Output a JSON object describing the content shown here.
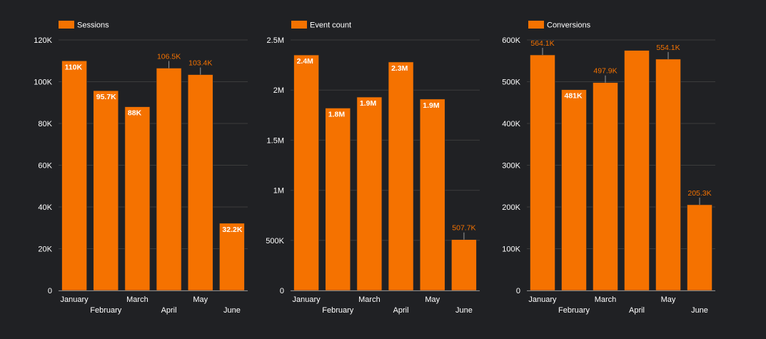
{
  "colors": {
    "background": "#202124",
    "bar": "#f57200",
    "bar_edge": "#2a2a2a",
    "axis_text": "#ffffff",
    "grid": "#3c3c3c",
    "axis_line": "#8a8a8a",
    "inside_label": "#ffffff",
    "outside_label": "#f57200",
    "leader_line": "#9a9a9a"
  },
  "chart_data": [
    {
      "type": "bar",
      "legend": "Sessions",
      "legend_position": "top-left",
      "grid": true,
      "categories": [
        "January",
        "February",
        "March",
        "April",
        "May",
        "June"
      ],
      "values": [
        110000,
        95700,
        88000,
        106500,
        103400,
        32200
      ],
      "data_labels": [
        "110K",
        "95.7K",
        "88K",
        "106.5K",
        "103.4K",
        "32.2K"
      ],
      "label_inside": [
        true,
        true,
        true,
        false,
        false,
        true
      ],
      "ylim": [
        0,
        120000
      ],
      "y_ticks": [
        0,
        20000,
        40000,
        60000,
        80000,
        100000,
        120000
      ],
      "y_tick_labels": [
        "0",
        "20K",
        "40K",
        "60K",
        "80K",
        "100K",
        "120K"
      ]
    },
    {
      "type": "bar",
      "legend": "Event count",
      "legend_position": "top-left",
      "grid": true,
      "categories": [
        "January",
        "February",
        "March",
        "April",
        "May",
        "June"
      ],
      "values": [
        2350000,
        1820000,
        1930000,
        2280000,
        1910000,
        507700
      ],
      "data_labels": [
        "2.4M",
        "1.8M",
        "1.9M",
        "2.3M",
        "1.9M",
        "507.7K"
      ],
      "label_inside": [
        true,
        true,
        true,
        true,
        true,
        false
      ],
      "ylim": [
        0,
        2500000
      ],
      "y_ticks": [
        0,
        500000,
        1000000,
        1500000,
        2000000,
        2500000
      ],
      "y_tick_labels": [
        "0",
        "500K",
        "1M",
        "1.5M",
        "2M",
        "2.5M"
      ]
    },
    {
      "type": "bar",
      "legend": "Conversions",
      "legend_position": "top-left",
      "grid": true,
      "categories": [
        "January",
        "February",
        "March",
        "April",
        "May",
        "June"
      ],
      "values": [
        564100,
        481000,
        497900,
        575000,
        554100,
        205300
      ],
      "data_labels": [
        "564.1K",
        "481K",
        "497.9K",
        "",
        "554.1K",
        "205.3K"
      ],
      "label_inside": [
        false,
        true,
        false,
        false,
        false,
        false
      ],
      "ylim": [
        0,
        600000
      ],
      "y_ticks": [
        0,
        100000,
        200000,
        300000,
        400000,
        500000,
        600000
      ],
      "y_tick_labels": [
        "0",
        "100K",
        "200K",
        "300K",
        "400K",
        "500K",
        "600K"
      ]
    }
  ]
}
